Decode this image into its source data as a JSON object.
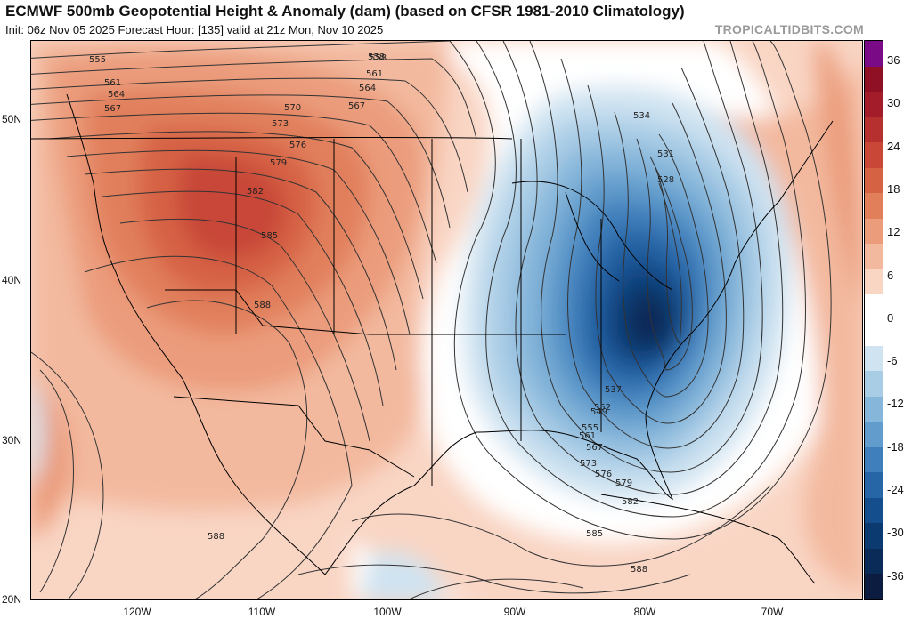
{
  "title": "ECMWF 500mb Geopotential Height & Anomaly (dam) (based on CFSR 1981-2010 Climatology)",
  "subtitle": "Init: 06z Nov 05 2025   Forecast Hour: [135]   valid at 21z Mon, Nov 10 2025",
  "brand": "TROPICALTIDBITS.COM",
  "lat_labels": [
    "50N",
    "40N",
    "30N",
    "20N"
  ],
  "lon_labels": [
    "120W",
    "110W",
    "100W",
    "90W",
    "80W",
    "70W"
  ],
  "colorbar": {
    "ticks": [
      "36",
      "30",
      "24",
      "18",
      "12",
      "6",
      "0",
      "-6",
      "-12",
      "-18",
      "-24",
      "-30",
      "-36"
    ],
    "colors": [
      "#7b0a86",
      "#8f0f25",
      "#a31c2a",
      "#b6302f",
      "#c84737",
      "#d66244",
      "#e17f5b",
      "#eb9c7b",
      "#f3b99f",
      "#f9d5c4",
      "#ffffff",
      "#ffffff",
      "#cfe3f1",
      "#aacde6",
      "#86b6da",
      "#629ccc",
      "#3f7fbb",
      "#2665a6",
      "#154e8c",
      "#0b3a71",
      "#0a2a58",
      "#0b1c40"
    ]
  },
  "contour_labels": [
    "555",
    "558",
    "561",
    "564",
    "567",
    "570",
    "573",
    "576",
    "579",
    "582",
    "585",
    "588",
    "534",
    "531",
    "528",
    "555",
    "561",
    "567",
    "573",
    "576",
    "579",
    "582",
    "585",
    "588",
    "558",
    "561",
    "564",
    "567",
    "588",
    "549",
    "552",
    "537"
  ],
  "chart_data": {
    "type": "heatmap",
    "title": "ECMWF 500mb Geopotential Height & Anomaly (dam) (based on CFSR 1981-2010 Climatology)",
    "variable": "500mb geopotential height anomaly (dam)",
    "color_scale_range": [
      -36,
      36
    ],
    "color_scale_ticks": [
      36,
      30,
      24,
      18,
      12,
      6,
      0,
      -6,
      -12,
      -18,
      -24,
      -30,
      -36
    ],
    "lat_range": [
      "20N",
      "50N"
    ],
    "lon_range": [
      "120W",
      "70W"
    ],
    "features": [
      {
        "kind": "ridge",
        "region": "western US",
        "max_anomaly": 18
      },
      {
        "kind": "trough",
        "region": "eastern US",
        "min_anomaly": -36
      }
    ],
    "height_contours_dam": [
      528,
      531,
      534,
      537,
      549,
      552,
      555,
      558,
      561,
      564,
      567,
      570,
      573,
      576,
      579,
      582,
      585,
      588
    ]
  }
}
